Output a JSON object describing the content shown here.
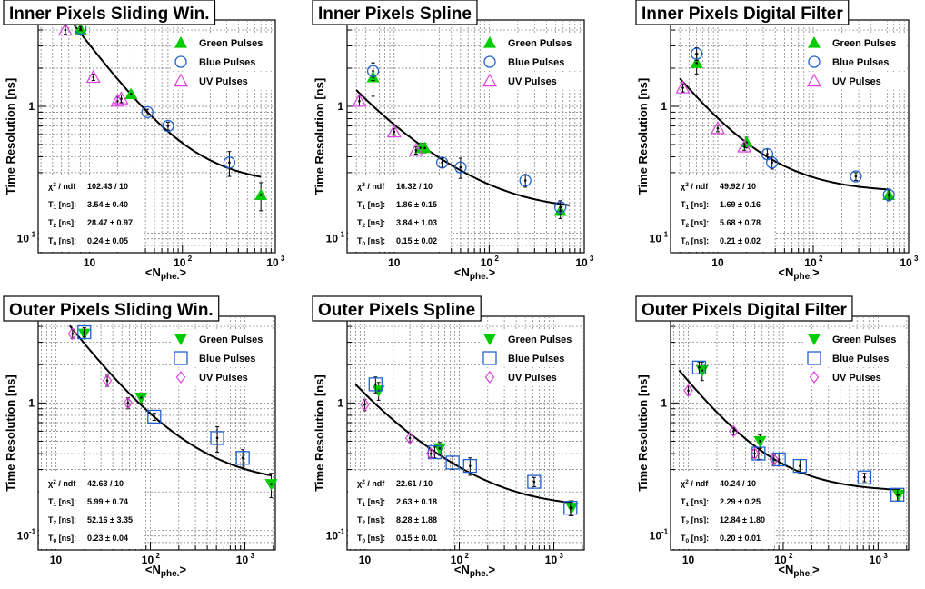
{
  "shared": {
    "ylabel": "Time Resolution [ns]",
    "xlabel_main": "<N",
    "xlabel_sub": "phe.",
    "xlabel_end": ">",
    "fit_labels": {
      "chi": "χ",
      "chi_sup": "2",
      "chi_rest": " / ndf",
      "t1": "T",
      "t1_sub": "1",
      "t2": "T",
      "t2_sub": "2",
      "t0": "T",
      "t0_sub": "0",
      "unit": " [ns]:"
    },
    "legend": {
      "green": "Green Pulses",
      "blue": "Blue Pulses",
      "uv": "UV Pulses"
    },
    "tick_labels": {
      "ten": "10",
      "hundred_base": "10",
      "hundred_exp": "2",
      "thousand_base": "10",
      "thousand_exp": "3",
      "y_one": "1",
      "y_tenth_base": "10",
      "y_tenth_exp": "-1"
    }
  },
  "colors": {
    "green": "#00cc00",
    "blue": "#2060d0",
    "uv": "#e040e0",
    "fit": "#000000",
    "grid": "#777777"
  },
  "chart_data": [
    {
      "type": "scatter",
      "title": "Inner Pixels Sliding Win.",
      "xlog": true,
      "ylog": true,
      "xlim": [
        2.8,
        1000
      ],
      "ylim": [
        0.07,
        4.8
      ],
      "markers": "triangle-up/circle/triangle-up-open",
      "fit": {
        "chi2": "102.43 / 10",
        "T1": "3.54 ± 0.40",
        "T2": "28.47 ± 0.97",
        "T0": "0.24 ± 0.05"
      },
      "fit_curve": {
        "T1": 3.54,
        "T2": 28.47,
        "T0": 0.24,
        "range": [
          4,
          700
        ]
      },
      "series": [
        {
          "name": "Green Pulses",
          "points": [
            [
              8,
              4.05,
              0.15
            ],
            [
              28,
              1.25,
              0.08
            ],
            [
              700,
              0.2,
              0.05
            ]
          ]
        },
        {
          "name": "Blue Pulses",
          "points": [
            [
              8,
              4.1,
              0.15
            ],
            [
              42,
              0.9,
              0.05
            ],
            [
              70,
              0.7,
              0.05
            ],
            [
              320,
              0.36,
              0.08
            ]
          ]
        },
        {
          "name": "UV Pulses",
          "points": [
            [
              5.5,
              4.0,
              0.3
            ],
            [
              11,
              1.7,
              0.1
            ],
            [
              20,
              1.1,
              0.08
            ],
            [
              22,
              1.15,
              0.08
            ]
          ]
        }
      ]
    },
    {
      "type": "scatter",
      "title": "Inner Pixels Spline",
      "xlog": true,
      "ylog": true,
      "xlim": [
        3.2,
        1000
      ],
      "ylim": [
        0.07,
        4.8
      ],
      "markers": "triangle-up/circle/triangle-up-open",
      "fit": {
        "chi2": "16.32 / 10",
        "T1": "1.86 ± 0.15",
        "T2": "3.84 ± 1.03",
        "T0": "0.15 ± 0.02"
      },
      "fit_curve": {
        "T1": 1.86,
        "T2": 3.84,
        "T0": 0.15,
        "range": [
          4,
          700
        ]
      },
      "series": [
        {
          "name": "Green Pulses",
          "points": [
            [
              6,
              1.7,
              0.5
            ],
            [
              19,
              0.47,
              0.04
            ],
            [
              21,
              0.47,
              0.04
            ],
            [
              560,
              0.15,
              0.02
            ]
          ]
        },
        {
          "name": "Blue Pulses",
          "points": [
            [
              6,
              1.9,
              0.3
            ],
            [
              32,
              0.36,
              0.03
            ],
            [
              50,
              0.33,
              0.06
            ],
            [
              240,
              0.26,
              0.03
            ],
            [
              560,
              0.16,
              0.02
            ]
          ]
        },
        {
          "name": "UV Pulses",
          "points": [
            [
              4.3,
              1.1,
              0.1
            ],
            [
              10,
              0.63,
              0.04
            ],
            [
              17,
              0.45,
              0.03
            ]
          ]
        }
      ]
    },
    {
      "type": "scatter",
      "title": "Inner Pixels Digital Filter",
      "xlog": true,
      "ylog": true,
      "xlim": [
        3.2,
        1000
      ],
      "ylim": [
        0.07,
        4.8
      ],
      "markers": "triangle-up/circle/triangle-up-open",
      "fit": {
        "chi2": "49.92 / 10",
        "T1": "1.69 ± 0.16",
        "T2": "5.68 ± 0.78",
        "T0": "0.21 ± 0.02"
      },
      "fit_curve": {
        "T1": 1.69,
        "T2": 5.68,
        "T0": 0.21,
        "range": [
          4,
          650
        ]
      },
      "series": [
        {
          "name": "Green Pulses",
          "points": [
            [
              6,
              2.2,
              0.4
            ],
            [
              20,
              0.52,
              0.05
            ],
            [
              620,
              0.2,
              0.02
            ]
          ]
        },
        {
          "name": "Blue Pulses",
          "points": [
            [
              6,
              2.6,
              0.3
            ],
            [
              33,
              0.42,
              0.04
            ],
            [
              37,
              0.36,
              0.04
            ],
            [
              280,
              0.28,
              0.02
            ],
            [
              620,
              0.2,
              0.02
            ]
          ]
        },
        {
          "name": "UV Pulses",
          "points": [
            [
              4.3,
              1.4,
              0.1
            ],
            [
              10,
              0.67,
              0.04
            ],
            [
              19,
              0.48,
              0.03
            ]
          ]
        }
      ]
    },
    {
      "type": "scatter",
      "title": "Outer Pixels Sliding Win.",
      "xlog": true,
      "ylog": true,
      "xlim": [
        6.5,
        2100
      ],
      "ylim": [
        0.07,
        4.8
      ],
      "markers": "triangle-down/square/diamond-open",
      "fit": {
        "chi2": "42.63 / 10",
        "T1": "5.99 ± 0.74",
        "T2": "52.16 ± 3.35",
        "T0": "0.23 ± 0.04"
      },
      "fit_curve": {
        "T1": 5.99,
        "T2": 52.16,
        "T0": 0.23,
        "range": [
          14,
          1900
        ]
      },
      "series": [
        {
          "name": "Green Pulses",
          "points": [
            [
              20,
              3.5,
              0.3
            ],
            [
              80,
              1.1,
              0.1
            ],
            [
              1900,
              0.23,
              0.05
            ]
          ]
        },
        {
          "name": "Blue Pulses",
          "points": [
            [
              20,
              3.6,
              0.3
            ],
            [
              110,
              0.78,
              0.05
            ],
            [
              510,
              0.53,
              0.12
            ],
            [
              950,
              0.37,
              0.06
            ]
          ]
        },
        {
          "name": "UV Pulses",
          "points": [
            [
              15,
              3.5,
              0.3
            ],
            [
              35,
              1.5,
              0.15
            ],
            [
              58,
              1.0,
              0.1
            ]
          ]
        }
      ]
    },
    {
      "type": "scatter",
      "title": "Outer Pixels Spline",
      "xlog": true,
      "ylog": true,
      "xlim": [
        6.5,
        2100
      ],
      "ylim": [
        0.07,
        4.8
      ],
      "markers": "triangle-down/square/diamond-open",
      "fit": {
        "chi2": "22.61 / 10",
        "T1": "2.63 ± 0.18",
        "T2": "8.28 ± 1.88",
        "T0": "0.15 ± 0.01"
      },
      "fit_curve": {
        "T1": 2.63,
        "T2": 8.28,
        "T0": 0.15,
        "range": [
          8,
          1600
        ]
      },
      "series": [
        {
          "name": "Green Pulses",
          "points": [
            [
              14,
              1.25,
              0.2
            ],
            [
              62,
              0.44,
              0.05
            ],
            [
              1550,
              0.15,
              0.02
            ]
          ]
        },
        {
          "name": "Blue Pulses",
          "points": [
            [
              13,
              1.4,
              0.2
            ],
            [
              55,
              0.41,
              0.04
            ],
            [
              85,
              0.34,
              0.04
            ],
            [
              130,
              0.32,
              0.05
            ],
            [
              620,
              0.24,
              0.02
            ],
            [
              1500,
              0.15,
              0.02
            ]
          ]
        },
        {
          "name": "UV Pulses",
          "points": [
            [
              10,
              0.97,
              0.1
            ],
            [
              30,
              0.53,
              0.04
            ],
            [
              50,
              0.4,
              0.03
            ]
          ]
        }
      ]
    },
    {
      "type": "scatter",
      "title": "Outer Pixels Digital Filter",
      "xlog": true,
      "ylog": true,
      "xlim": [
        6.5,
        2100
      ],
      "ylim": [
        0.07,
        4.8
      ],
      "markers": "triangle-down/square/diamond-open",
      "fit": {
        "chi2": "40.24 / 10",
        "T1": "2.29 ± 0.25",
        "T2": "12.84 ± 1.80",
        "T0": "0.20 ± 0.01"
      },
      "fit_curve": {
        "T1": 2.29,
        "T2": 12.84,
        "T0": 0.2,
        "range": [
          8,
          1700
        ]
      },
      "series": [
        {
          "name": "Green Pulses",
          "points": [
            [
              14,
              1.8,
              0.3
            ],
            [
              57,
              0.5,
              0.06
            ],
            [
              1650,
              0.19,
              0.02
            ]
          ]
        },
        {
          "name": "Blue Pulses",
          "points": [
            [
              13,
              1.9,
              0.2
            ],
            [
              55,
              0.4,
              0.04
            ],
            [
              90,
              0.36,
              0.04
            ],
            [
              150,
              0.32,
              0.04
            ],
            [
              720,
              0.26,
              0.02
            ],
            [
              1600,
              0.19,
              0.02
            ]
          ]
        },
        {
          "name": "UV Pulses",
          "points": [
            [
              10,
              1.25,
              0.1
            ],
            [
              30,
              0.6,
              0.04
            ],
            [
              50,
              0.4,
              0.03
            ],
            [
              80,
              0.36,
              0.03
            ]
          ]
        }
      ]
    }
  ]
}
